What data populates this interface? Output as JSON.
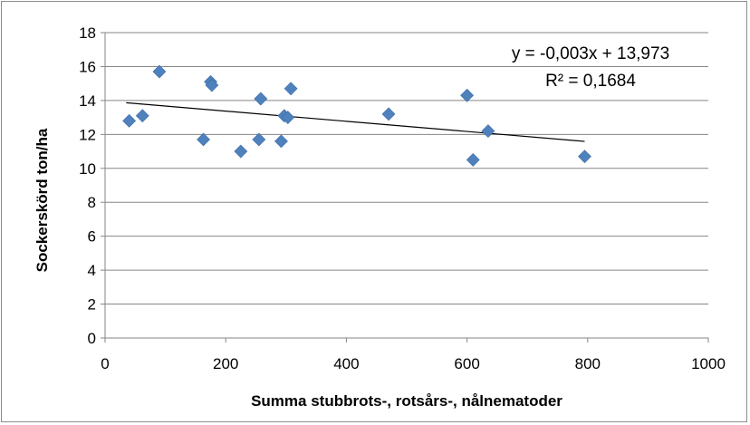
{
  "chart_data": {
    "type": "scatter",
    "xlabel": "Summa stubbrots-,  rotsårs-,  nålnematoder",
    "ylabel": "Sockerskörd ton/ha",
    "xlim": [
      0,
      1000
    ],
    "ylim": [
      0,
      18
    ],
    "x_ticks": [
      "0",
      "200",
      "400",
      "600",
      "800",
      "1000"
    ],
    "y_ticks": [
      "0",
      "2",
      "4",
      "6",
      "8",
      "10",
      "12",
      "14",
      "16",
      "18"
    ],
    "x_tick_values": [
      0,
      200,
      400,
      600,
      800,
      1000
    ],
    "y_tick_values": [
      0,
      2,
      4,
      6,
      8,
      10,
      12,
      14,
      16,
      18
    ],
    "grid": "horizontal",
    "legend": "none",
    "marker": "diamond",
    "series": [
      {
        "color": "#4f81bd",
        "points": [
          {
            "x": 40,
            "y": 12.8
          },
          {
            "x": 62,
            "y": 13.1
          },
          {
            "x": 90,
            "y": 15.7
          },
          {
            "x": 163,
            "y": 11.7
          },
          {
            "x": 175,
            "y": 15.1
          },
          {
            "x": 177,
            "y": 14.9
          },
          {
            "x": 225,
            "y": 11.0
          },
          {
            "x": 255,
            "y": 11.7
          },
          {
            "x": 258,
            "y": 14.1
          },
          {
            "x": 292,
            "y": 11.6
          },
          {
            "x": 297,
            "y": 13.1
          },
          {
            "x": 303,
            "y": 13.0
          },
          {
            "x": 308,
            "y": 14.7
          },
          {
            "x": 470,
            "y": 13.2
          },
          {
            "x": 600,
            "y": 14.3
          },
          {
            "x": 610,
            "y": 10.5
          },
          {
            "x": 635,
            "y": 12.2
          },
          {
            "x": 795,
            "y": 10.7
          }
        ]
      }
    ],
    "trendline": {
      "type": "linear",
      "slope": -0.003,
      "intercept": 13.973,
      "x_range": [
        35,
        795
      ],
      "color": "#000000",
      "equation_label": "y = -0,003x + 13,973",
      "r2_label": "R² = 0,1684"
    }
  }
}
